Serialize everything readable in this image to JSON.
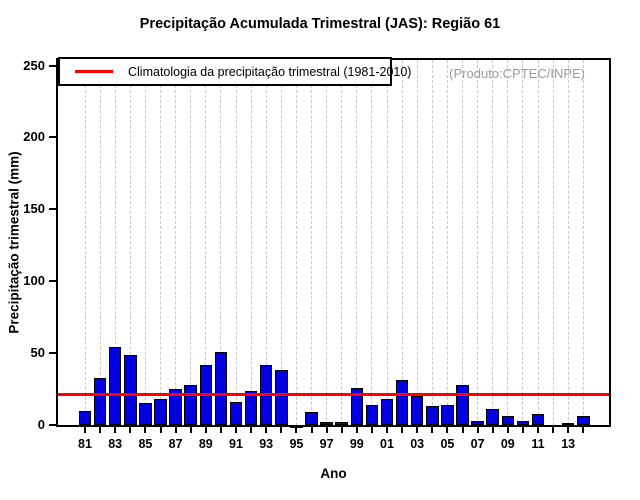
{
  "page": {
    "watermark": "(Produto:CPTEC/INPE)"
  },
  "chart_data": {
    "type": "bar",
    "title": "Precipitação Acumulada Trimestral (JAS): Região 61",
    "xlabel": "Ano",
    "ylabel": "Precipitação trimestral (mm)",
    "categories": [
      "1981",
      "1982",
      "1983",
      "1984",
      "1985",
      "1986",
      "1987",
      "1988",
      "1989",
      "1990",
      "1991",
      "1992",
      "1993",
      "1994",
      "1995",
      "1996",
      "1997",
      "1998",
      "1999",
      "2000",
      "2001",
      "2002",
      "2003",
      "2004",
      "2005",
      "2006",
      "2007",
      "2008",
      "2009",
      "2010",
      "2011",
      "2012",
      "2013",
      "2014"
    ],
    "values": [
      10,
      33,
      54,
      49,
      15,
      18,
      25,
      28,
      42,
      51,
      16,
      24,
      42,
      38,
      -1,
      9,
      2,
      2,
      26,
      14,
      18,
      31,
      20,
      13,
      14,
      28,
      3,
      11,
      6,
      3,
      8,
      0,
      1,
      6
    ],
    "climatology": 21,
    "x_tick_labels": [
      "81",
      "83",
      "85",
      "87",
      "89",
      "91",
      "93",
      "95",
      "97",
      "99",
      "01",
      "03",
      "05",
      "07",
      "09",
      "11",
      "13"
    ],
    "y_ticks": [
      0,
      50,
      100,
      150,
      200,
      250
    ],
    "ylim": [
      0,
      250
    ],
    "grid": "vertical-dashed",
    "legend_position": "top-left",
    "legend": [
      {
        "label": "Climatologia da precipitação trimestral (1981-2010)",
        "color": "#ff0000"
      }
    ],
    "colors": {
      "bar_fill": "#0000e0",
      "bar_border": "#000000",
      "climatology_line": "#ff0000",
      "grid": "#c8c8c8",
      "watermark": "#9c9c9c"
    }
  }
}
